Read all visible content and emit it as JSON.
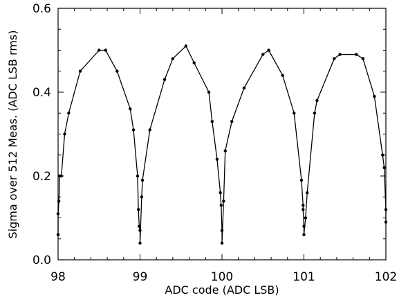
{
  "chart_data": {
    "type": "line",
    "title": "",
    "xlabel": "ADC code (ADC LSB)",
    "ylabel": "Sigma over 512 Meas. (ADC LSB rms)",
    "xlim": [
      98,
      102
    ],
    "ylim": [
      0.0,
      0.6
    ],
    "xticks": [
      {
        "value": 98,
        "label": "98"
      },
      {
        "value": 99,
        "label": "99"
      },
      {
        "value": 100,
        "label": "100"
      },
      {
        "value": 101,
        "label": "101"
      },
      {
        "value": 102,
        "label": "102"
      }
    ],
    "yticks": [
      {
        "value": 0.0,
        "label": "0.0"
      },
      {
        "value": 0.2,
        "label": "0.2"
      },
      {
        "value": 0.4,
        "label": "0.4"
      },
      {
        "value": 0.6,
        "label": "0.6"
      }
    ],
    "grid": false,
    "line_color": "#000000",
    "series": [
      {
        "x": [
          98.0,
          98.0,
          98.01,
          98.02,
          98.04,
          98.08,
          98.13,
          98.27,
          98.5,
          98.58,
          98.72,
          98.88,
          98.92,
          98.97,
          98.98,
          98.99,
          99.0,
          99.0,
          99.02,
          99.03,
          99.12,
          99.3,
          99.4,
          99.56,
          99.66,
          99.84,
          99.88,
          99.94,
          99.98,
          99.99,
          100.0,
          100.0,
          100.02,
          100.04,
          100.12,
          100.27,
          100.5,
          100.57,
          100.74,
          100.88,
          100.97,
          100.99,
          100.99,
          101.0,
          101.0,
          101.02,
          101.04,
          101.13,
          101.16,
          101.37,
          101.44,
          101.64,
          101.72,
          101.86,
          101.96,
          101.98,
          102.0,
          102.0
        ],
        "y": [
          0.06,
          0.11,
          0.14,
          0.2,
          0.2,
          0.3,
          0.35,
          0.45,
          0.5,
          0.5,
          0.45,
          0.36,
          0.31,
          0.2,
          0.12,
          0.08,
          0.07,
          0.04,
          0.15,
          0.19,
          0.31,
          0.43,
          0.48,
          0.51,
          0.47,
          0.4,
          0.33,
          0.24,
          0.16,
          0.13,
          0.07,
          0.04,
          0.14,
          0.26,
          0.33,
          0.41,
          0.49,
          0.5,
          0.44,
          0.35,
          0.19,
          0.13,
          0.12,
          0.08,
          0.06,
          0.1,
          0.16,
          0.35,
          0.38,
          0.48,
          0.49,
          0.49,
          0.48,
          0.39,
          0.25,
          0.22,
          0.12,
          0.09
        ]
      }
    ]
  }
}
